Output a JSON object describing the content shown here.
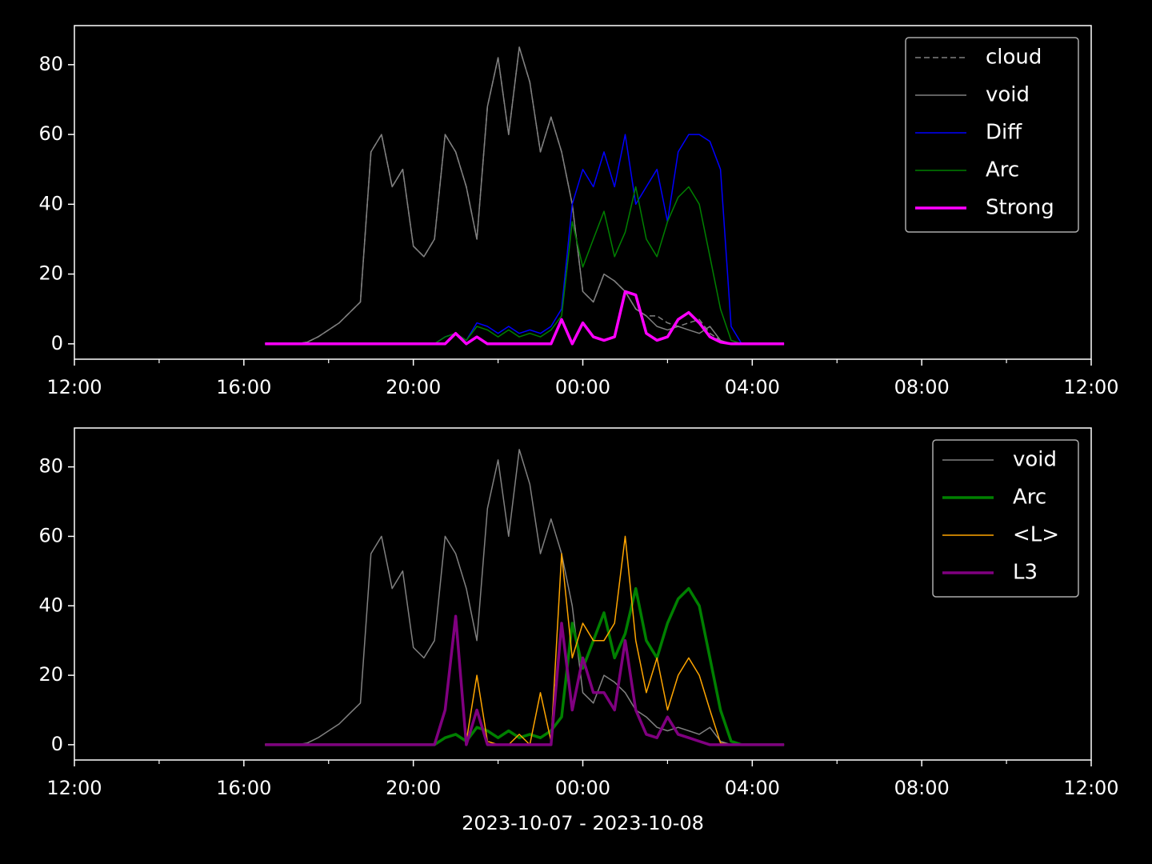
{
  "chart_data": [
    {
      "type": "line",
      "legend": "upper right",
      "x": [
        16.5,
        16.75,
        17,
        17.25,
        17.5,
        17.75,
        18,
        18.25,
        18.5,
        18.75,
        19,
        19.25,
        19.5,
        19.75,
        20,
        20.25,
        20.5,
        20.75,
        21,
        21.25,
        21.5,
        21.75,
        22,
        22.25,
        22.5,
        22.75,
        23,
        23.25,
        23.5,
        23.75,
        24,
        24.25,
        24.5,
        24.75,
        25,
        25.25,
        25.5,
        25.75,
        26,
        26.25,
        26.5,
        26.75,
        27,
        27.25,
        27.5,
        27.75,
        28,
        28.25,
        28.5,
        28.75
      ],
      "xlim": [
        12,
        36
      ],
      "xticks": [
        {
          "value": 12,
          "label": "12:00"
        },
        {
          "value": 16,
          "label": "16:00"
        },
        {
          "value": 20,
          "label": "20:00"
        },
        {
          "value": 24,
          "label": "00:00"
        },
        {
          "value": 28,
          "label": "04:00"
        },
        {
          "value": 32,
          "label": "08:00"
        },
        {
          "value": 36,
          "label": "12:00"
        }
      ],
      "xminorticks": [
        14,
        18,
        22,
        26,
        30,
        34
      ],
      "ylim": [
        -4.4,
        91.2
      ],
      "yticks": [
        0,
        20,
        40,
        60,
        80
      ],
      "series": [
        {
          "name": "cloud",
          "color": "#808080",
          "linestyle": "dashed",
          "linewidth": 1.5,
          "values": [
            0,
            0,
            0,
            0,
            0.5,
            2,
            4,
            6,
            9,
            12,
            55,
            60,
            45,
            50,
            28,
            25,
            30,
            60,
            55,
            45,
            30,
            68,
            82,
            60,
            85,
            75,
            55,
            65,
            55,
            40,
            15,
            12,
            20,
            18,
            15,
            10,
            8,
            8,
            6,
            5,
            6,
            7,
            3,
            1,
            0,
            0,
            0,
            0,
            0,
            0
          ]
        },
        {
          "name": "void",
          "color": "#808080",
          "linestyle": "solid",
          "linewidth": 1.5,
          "values": [
            0,
            0,
            0,
            0,
            0.5,
            2,
            4,
            6,
            9,
            12,
            55,
            60,
            45,
            50,
            28,
            25,
            30,
            60,
            55,
            45,
            30,
            68,
            82,
            60,
            85,
            75,
            55,
            65,
            55,
            40,
            15,
            12,
            20,
            18,
            15,
            10,
            8,
            5,
            4,
            5,
            4,
            3,
            5,
            1,
            0,
            0,
            0,
            0,
            0,
            0
          ]
        },
        {
          "name": "Diff",
          "color": "#0000ff",
          "linestyle": "solid",
          "linewidth": 1.5,
          "values": [
            0,
            0,
            0,
            0,
            0,
            0,
            0,
            0,
            0,
            0,
            0,
            0,
            0,
            0,
            0,
            0,
            0,
            2,
            3,
            1,
            6,
            5,
            3,
            5,
            3,
            4,
            3,
            5,
            10,
            40,
            50,
            45,
            55,
            45,
            60,
            40,
            45,
            50,
            35,
            55,
            60,
            60,
            58,
            50,
            5,
            0,
            0,
            0,
            0,
            0
          ]
        },
        {
          "name": "Arc",
          "color": "#008000",
          "linestyle": "solid",
          "linewidth": 1.5,
          "values": [
            0,
            0,
            0,
            0,
            0,
            0,
            0,
            0,
            0,
            0,
            0,
            0,
            0,
            0,
            0,
            0,
            0,
            2,
            3,
            1,
            5,
            4,
            2,
            4,
            2,
            3,
            2,
            4,
            8,
            35,
            22,
            30,
            38,
            25,
            32,
            45,
            30,
            25,
            35,
            42,
            45,
            40,
            25,
            10,
            1,
            0,
            0,
            0,
            0,
            0
          ]
        },
        {
          "name": "Strong",
          "color": "#ff00ff",
          "linestyle": "solid",
          "linewidth": 3.5,
          "values": [
            0,
            0,
            0,
            0,
            0,
            0,
            0,
            0,
            0,
            0,
            0,
            0,
            0,
            0,
            0,
            0,
            0,
            0,
            3,
            0,
            2,
            0,
            0,
            0,
            0,
            0,
            0,
            0,
            7,
            0,
            6,
            2,
            1,
            2,
            15,
            14,
            3,
            1,
            2,
            7,
            9,
            6,
            2,
            0.5,
            0,
            0,
            0,
            0,
            0,
            0
          ]
        }
      ]
    },
    {
      "type": "line",
      "legend": "upper right",
      "xlabel": "2023-10-07 - 2023-10-08",
      "x": [
        16.5,
        16.75,
        17,
        17.25,
        17.5,
        17.75,
        18,
        18.25,
        18.5,
        18.75,
        19,
        19.25,
        19.5,
        19.75,
        20,
        20.25,
        20.5,
        20.75,
        21,
        21.25,
        21.5,
        21.75,
        22,
        22.25,
        22.5,
        22.75,
        23,
        23.25,
        23.5,
        23.75,
        24,
        24.25,
        24.5,
        24.75,
        25,
        25.25,
        25.5,
        25.75,
        26,
        26.25,
        26.5,
        26.75,
        27,
        27.25,
        27.5,
        27.75,
        28,
        28.25,
        28.5,
        28.75
      ],
      "xlim": [
        12,
        36
      ],
      "xticks": [
        {
          "value": 12,
          "label": "12:00"
        },
        {
          "value": 16,
          "label": "16:00"
        },
        {
          "value": 20,
          "label": "20:00"
        },
        {
          "value": 24,
          "label": "00:00"
        },
        {
          "value": 28,
          "label": "04:00"
        },
        {
          "value": 32,
          "label": "08:00"
        },
        {
          "value": 36,
          "label": "12:00"
        }
      ],
      "xminorticks": [
        14,
        18,
        22,
        26,
        30,
        34
      ],
      "ylim": [
        -4.4,
        91.2
      ],
      "yticks": [
        0,
        20,
        40,
        60,
        80
      ],
      "series": [
        {
          "name": "void",
          "color": "#808080",
          "linestyle": "solid",
          "linewidth": 1.5,
          "values": [
            0,
            0,
            0,
            0,
            0.5,
            2,
            4,
            6,
            9,
            12,
            55,
            60,
            45,
            50,
            28,
            25,
            30,
            60,
            55,
            45,
            30,
            68,
            82,
            60,
            85,
            75,
            55,
            65,
            55,
            40,
            15,
            12,
            20,
            18,
            15,
            10,
            8,
            5,
            4,
            5,
            4,
            3,
            5,
            1,
            0,
            0,
            0,
            0,
            0,
            0
          ]
        },
        {
          "name": "Arc",
          "color": "#008000",
          "linestyle": "solid",
          "linewidth": 3.5,
          "values": [
            0,
            0,
            0,
            0,
            0,
            0,
            0,
            0,
            0,
            0,
            0,
            0,
            0,
            0,
            0,
            0,
            0,
            2,
            3,
            1,
            5,
            4,
            2,
            4,
            2,
            3,
            2,
            4,
            8,
            35,
            22,
            30,
            38,
            25,
            32,
            45,
            30,
            25,
            35,
            42,
            45,
            40,
            25,
            10,
            1,
            0,
            0,
            0,
            0,
            0
          ]
        },
        {
          "name": "<L>",
          "color": "#ffa500",
          "linestyle": "solid",
          "linewidth": 1.5,
          "values": [
            0,
            0,
            0,
            0,
            0,
            0,
            0,
            0,
            0,
            0,
            0,
            0,
            0,
            0,
            0,
            0,
            0,
            10,
            35,
            1,
            20,
            1,
            0,
            0,
            3,
            0,
            15,
            1,
            55,
            25,
            35,
            30,
            30,
            35,
            60,
            30,
            15,
            25,
            10,
            20,
            25,
            20,
            10,
            0.5,
            0,
            0,
            0,
            0,
            0,
            0
          ]
        },
        {
          "name": "L3",
          "color": "#800080",
          "linestyle": "solid",
          "linewidth": 3.5,
          "values": [
            0,
            0,
            0,
            0,
            0,
            0,
            0,
            0,
            0,
            0,
            0,
            0,
            0,
            0,
            0,
            0,
            0,
            10,
            37,
            0,
            10,
            0,
            0,
            0,
            0,
            0,
            0,
            0,
            35,
            10,
            25,
            15,
            15,
            10,
            30,
            10,
            3,
            2,
            8,
            3,
            2,
            1,
            0,
            0,
            0,
            0,
            0,
            0,
            0,
            0
          ]
        }
      ]
    }
  ]
}
